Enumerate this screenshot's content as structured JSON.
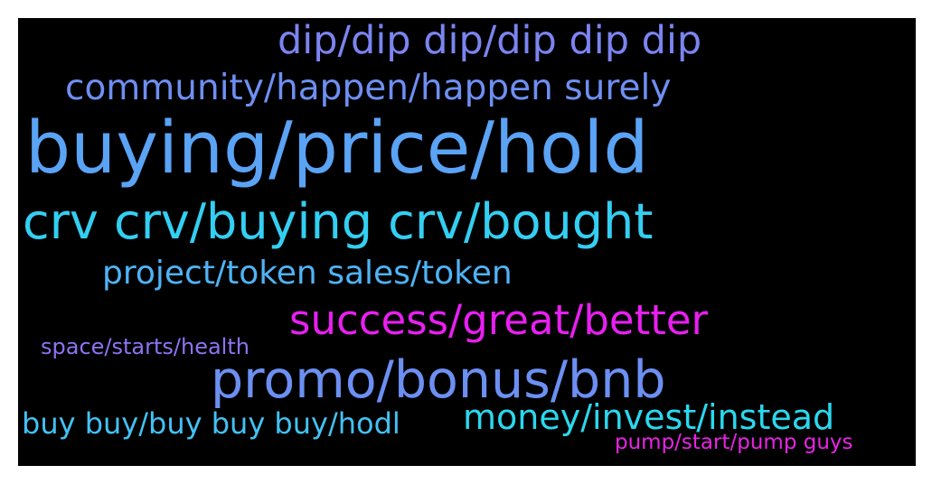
{
  "wordcloud": {
    "background_color": "#000000",
    "words": [
      {
        "text": "dip/dip dip/dip dip dip",
        "color": "#7b84f0"
      },
      {
        "text": "community/happen/happen surely",
        "color": "#6e8ff2"
      },
      {
        "text": "buying/price/hold",
        "color": "#5aa3f5"
      },
      {
        "text": "crv crv/buying crv/bought",
        "color": "#33cff2"
      },
      {
        "text": "project/token sales/token",
        "color": "#4fb3f5"
      },
      {
        "text": "success/great/better",
        "color": "#e81ff0"
      },
      {
        "text": "space/starts/health",
        "color": "#8f73f2"
      },
      {
        "text": "promo/bonus/bnb",
        "color": "#6c8ff2"
      },
      {
        "text": "buy buy/buy buy buy/hodl",
        "color": "#42c2f5"
      },
      {
        "text": "money/invest/instead",
        "color": "#2ad8ee"
      },
      {
        "text": "pump/start/pump guys",
        "color": "#e824e6"
      }
    ]
  }
}
